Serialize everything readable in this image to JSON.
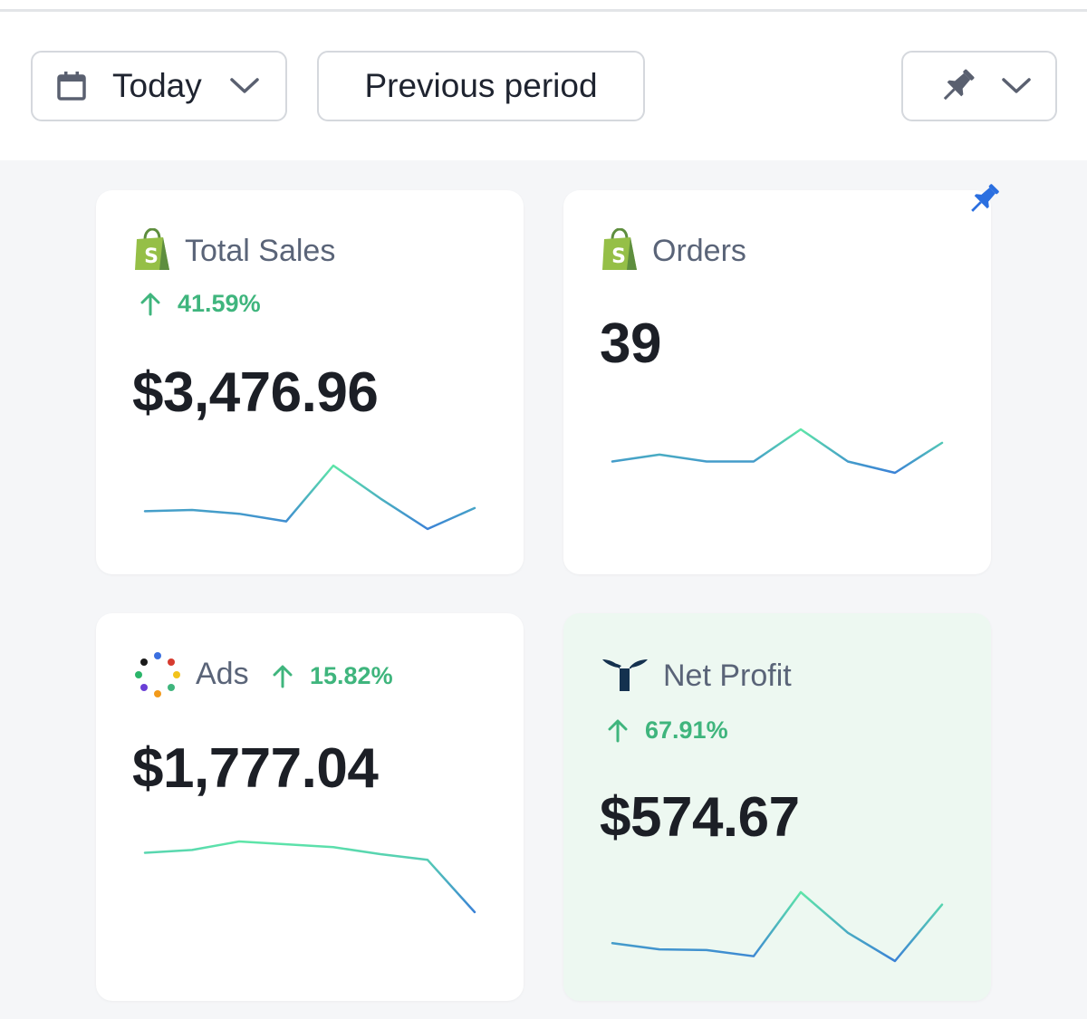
{
  "toolbar": {
    "date_range": {
      "label": "Today",
      "icon": "calendar-icon"
    },
    "compare": {
      "label": "Previous period"
    },
    "pin_menu": {
      "icon": "pin-icon"
    }
  },
  "colors": {
    "positive": "#3fb57d",
    "spark_start": "#3b82d6",
    "spark_end": "#5ee6a8",
    "pin_active": "#2b6fe0",
    "net_profit_bg": "#edf8f1"
  },
  "cards": [
    {
      "title": "Total Sales",
      "logo": "shopify-icon",
      "change": "41.59%",
      "value": "$3,476.96",
      "trend": [
        0.28,
        0.3,
        0.24,
        0.12,
        1.0,
        0.48,
        0.0,
        0.33
      ]
    },
    {
      "title": "Orders",
      "logo": "shopify-icon",
      "pinned": true,
      "value": "39",
      "trend": [
        0.26,
        0.42,
        0.26,
        0.26,
        1.0,
        0.26,
        0.0,
        0.69
      ]
    },
    {
      "title": "Ads",
      "logo": "dots-icon",
      "change": "15.82%",
      "value": "$1,777.04",
      "trend": [
        0.84,
        0.88,
        1.0,
        0.96,
        0.92,
        0.82,
        0.74,
        0.0
      ]
    },
    {
      "title": "Net Profit",
      "logo": "triple-whale-icon",
      "change": "67.91%",
      "value": "$574.67",
      "trend": [
        0.26,
        0.17,
        0.16,
        0.07,
        1.0,
        0.41,
        0.0,
        0.82
      ]
    }
  ]
}
